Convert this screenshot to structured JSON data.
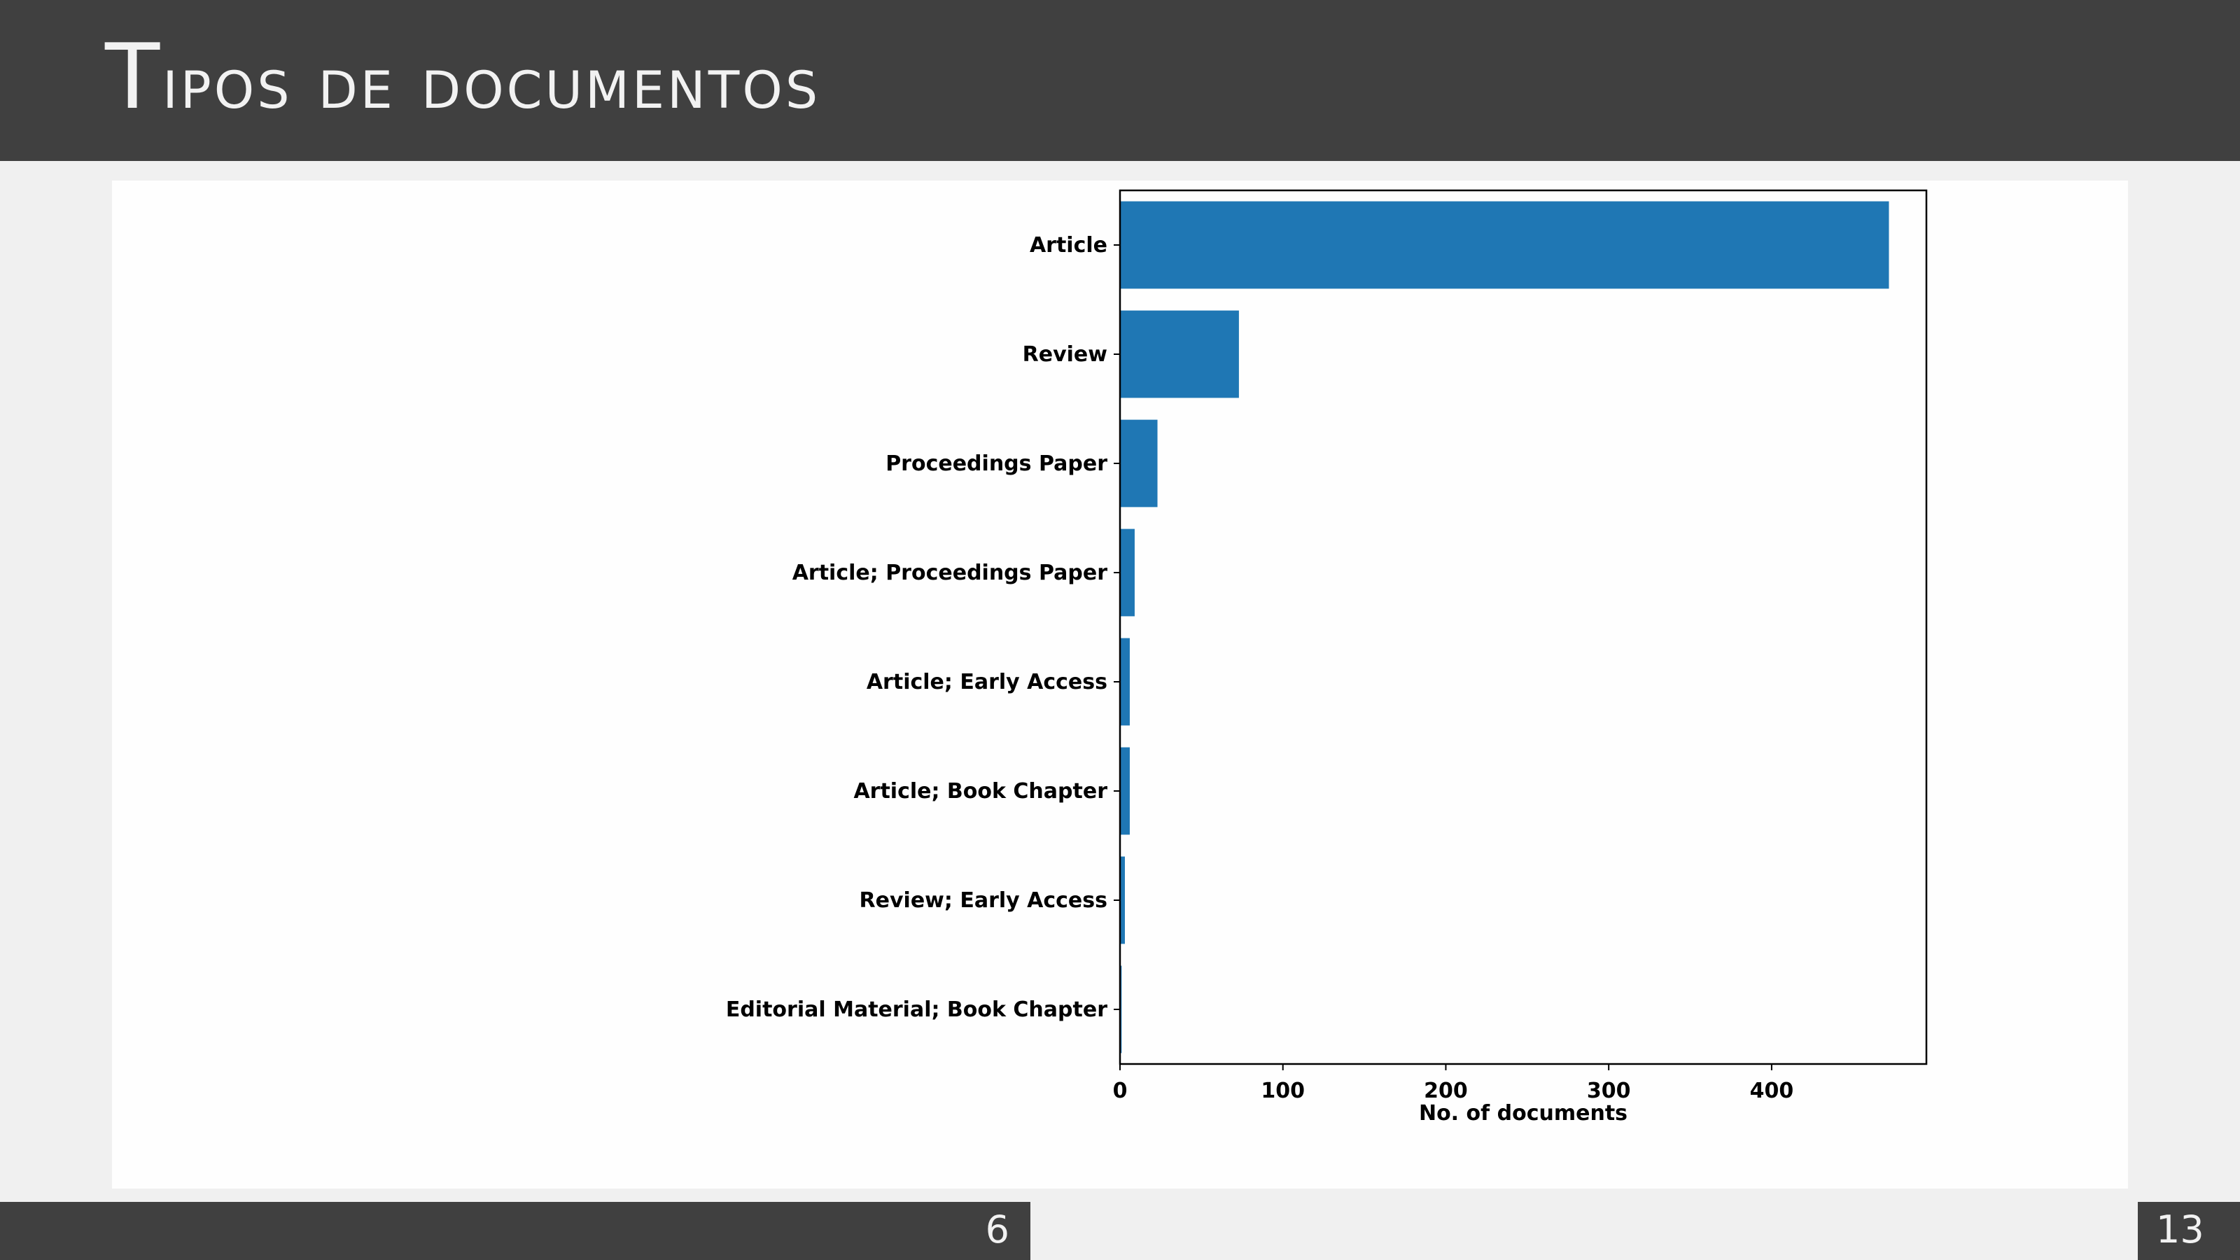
{
  "slide": {
    "title_first": "T",
    "title_rest": "ipos de documentos",
    "page_current": "6",
    "page_total": "13"
  },
  "colors": {
    "header_bg": "#404040",
    "bar": "#1f77b4",
    "page_bg": "#f0f0f0"
  },
  "chart_data": {
    "type": "bar",
    "orientation": "horizontal",
    "categories": [
      "Article",
      "Review",
      "Proceedings Paper",
      "Article; Proceedings Paper",
      "Article; Early Access",
      "Article; Book Chapter",
      "Review; Early Access",
      "Editorial Material; Book Chapter"
    ],
    "values": [
      472,
      73,
      23,
      9,
      6,
      6,
      3,
      1
    ],
    "xlabel": "No. of documents",
    "ylabel": "",
    "xticks": [
      0,
      100,
      200,
      300,
      400
    ],
    "xlim": [
      0,
      495
    ],
    "grid": false,
    "legend": "none"
  }
}
